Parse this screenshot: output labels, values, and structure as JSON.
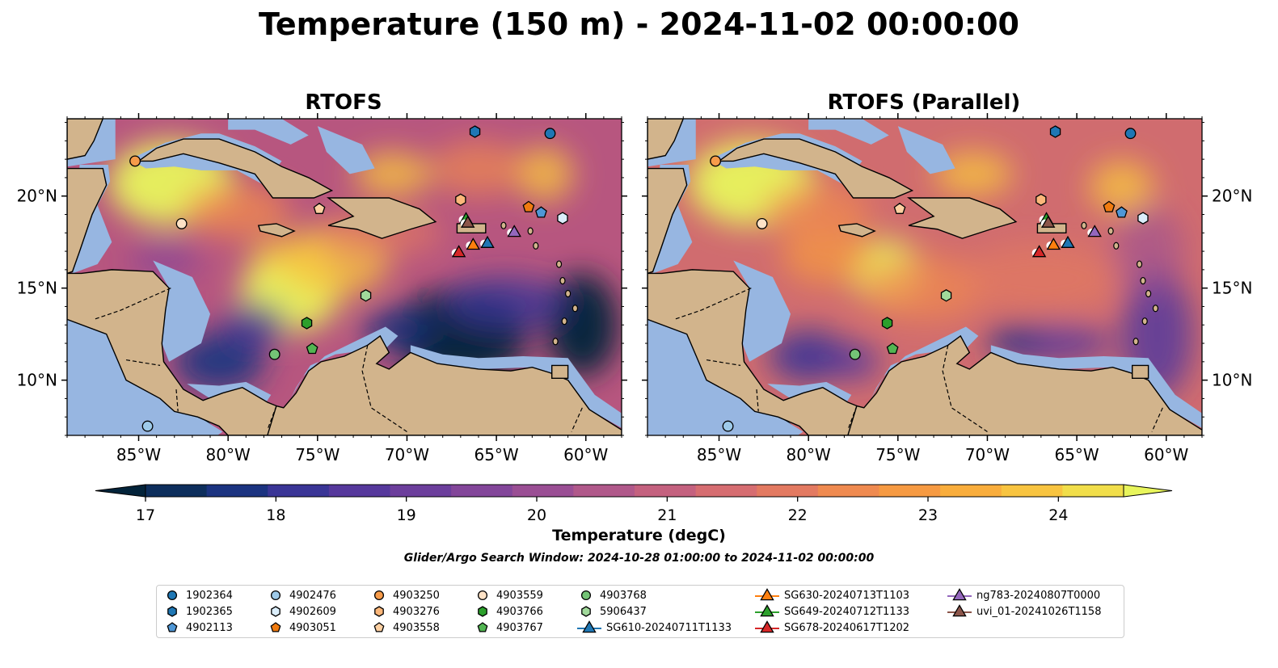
{
  "title": "Temperature (150 m) - 2024-11-02 00:00:00",
  "panels": [
    {
      "title": "RTOFS"
    },
    {
      "title": "RTOFS (Parallel)"
    }
  ],
  "map": {
    "lon_ticks": [
      "85°W",
      "80°W",
      "75°W",
      "70°W",
      "65°W",
      "60°W"
    ],
    "lon_values": [
      -85,
      -80,
      -75,
      -70,
      -65,
      -60
    ],
    "lat_ticks": [
      "20°N",
      "15°N",
      "10°N"
    ],
    "lat_values": [
      20,
      15,
      10
    ],
    "extent": {
      "lon": [
        -89,
        -58
      ],
      "lat": [
        7,
        24.2
      ]
    }
  },
  "colorbar": {
    "label": "Temperature (degC)",
    "ticks": [
      "17",
      "18",
      "19",
      "20",
      "21",
      "22",
      "23",
      "24"
    ],
    "range": [
      17,
      24.5
    ],
    "colors": [
      "#03233a",
      "#0d2e5c",
      "#1b3380",
      "#3a3596",
      "#56389c",
      "#6c3e9c",
      "#83469a",
      "#9a4e94",
      "#b0588a",
      "#c4617f",
      "#d66d71",
      "#e37a61",
      "#ef8a50",
      "#f69a42",
      "#f9ad3c",
      "#f8c440",
      "#f1de4a",
      "#e8f55c"
    ],
    "extend": "both"
  },
  "search_window": "Glider/Argo Search Window: 2024-10-28 01:00:00 to 2024-11-02 00:00:00",
  "legend": [
    {
      "label": "1902364",
      "marker": "circle",
      "color": "#1f77b4"
    },
    {
      "label": "1902365",
      "marker": "hexagon",
      "color": "#1f77b4"
    },
    {
      "label": "4902113",
      "marker": "pentagon",
      "color": "#4f97d6"
    },
    {
      "label": "4902476",
      "marker": "circle",
      "color": "#9ecae9"
    },
    {
      "label": "4902609",
      "marker": "hexagon",
      "color": "#dbeefb"
    },
    {
      "label": "4903051",
      "marker": "pentagon",
      "color": "#f07b10"
    },
    {
      "label": "4903250",
      "marker": "circle",
      "color": "#f79b4a"
    },
    {
      "label": "4903276",
      "marker": "hexagon",
      "color": "#fbb77a"
    },
    {
      "label": "4903558",
      "marker": "pentagon",
      "color": "#fdd0a2"
    },
    {
      "label": "4903559",
      "marker": "circle",
      "color": "#fde2c6"
    },
    {
      "label": "4903766",
      "marker": "hexagon",
      "color": "#2ca02c"
    },
    {
      "label": "4903767",
      "marker": "pentagon",
      "color": "#52b552"
    },
    {
      "label": "4903768",
      "marker": "circle",
      "color": "#74c476"
    },
    {
      "label": "5906437",
      "marker": "hexagon",
      "color": "#a1d99b"
    },
    {
      "label": "SG610-20240711T1133",
      "marker": "triangle",
      "color": "#1f77b4"
    },
    {
      "label": "SG630-20240713T1103",
      "marker": "triangle",
      "color": "#ff7f0e"
    },
    {
      "label": "SG649-20240712T1133",
      "marker": "triangle",
      "color": "#2ca02c"
    },
    {
      "label": "SG678-20240617T1202",
      "marker": "triangle",
      "color": "#d62728"
    },
    {
      "label": "ng783-20240807T0000",
      "marker": "triangle",
      "color": "#9467bd"
    },
    {
      "label": "uvi_01-20241026T1158",
      "marker": "triangle",
      "color": "#8c564b"
    }
  ],
  "observations": [
    {
      "id": "1902364",
      "lon": -62.0,
      "lat": 23.4
    },
    {
      "id": "1902365",
      "lon": -66.2,
      "lat": 23.5
    },
    {
      "id": "4902113",
      "lon": -62.5,
      "lat": 19.1
    },
    {
      "id": "4902476",
      "lon": -84.5,
      "lat": 7.5
    },
    {
      "id": "4902609",
      "lon": -61.3,
      "lat": 18.8
    },
    {
      "id": "4903051",
      "lon": -63.2,
      "lat": 19.4
    },
    {
      "id": "4903250",
      "lon": -85.2,
      "lat": 21.9
    },
    {
      "id": "4903276",
      "lon": -67.0,
      "lat": 19.8
    },
    {
      "id": "4903558",
      "lon": -74.9,
      "lat": 19.3
    },
    {
      "id": "4903559",
      "lon": -82.6,
      "lat": 18.5
    },
    {
      "id": "4903766",
      "lon": -75.6,
      "lat": 13.1
    },
    {
      "id": "4903767",
      "lon": -75.3,
      "lat": 11.7
    },
    {
      "id": "4903768",
      "lon": -77.4,
      "lat": 11.4
    },
    {
      "id": "5906437",
      "lon": -72.3,
      "lat": 14.6
    },
    {
      "id": "SG610-20240711T1133",
      "lon": -65.5,
      "lat": 17.5
    },
    {
      "id": "SG630-20240713T1103",
      "lon": -66.3,
      "lat": 17.4
    },
    {
      "id": "SG649-20240712T1133",
      "lon": -66.7,
      "lat": 18.8
    },
    {
      "id": "SG678-20240617T1202",
      "lon": -67.1,
      "lat": 17.0
    },
    {
      "id": "ng783-20240807T0000",
      "lon": -64.0,
      "lat": 18.1
    },
    {
      "id": "uvi_01-20241026T1158",
      "lon": -66.6,
      "lat": 18.6
    }
  ],
  "palette": {
    "land": "#d2b48c",
    "shelf": "#97b6e1",
    "deep": "#06243a",
    "warm": "#f29149",
    "hot": "#e8f55c",
    "mid": "#9a4e94",
    "cool": "#4c3792"
  }
}
